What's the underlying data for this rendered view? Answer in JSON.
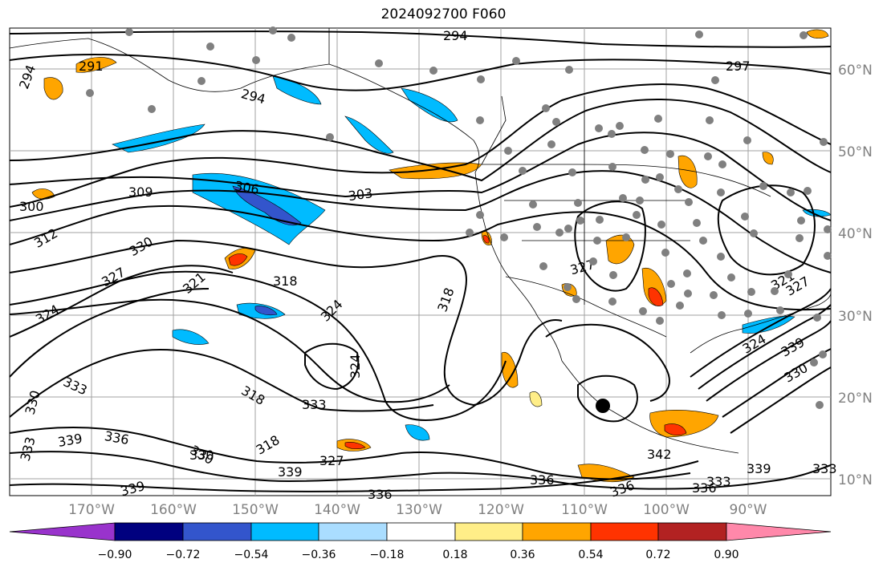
{
  "title": "2024092700 F060",
  "longitude_labels": [
    "170°W",
    "160°W",
    "150°W",
    "140°W",
    "130°W",
    "120°W",
    "110°W",
    "100°W",
    "90°W"
  ],
  "latitude_labels": [
    "60°N",
    "50°N",
    "40°N",
    "30°N",
    "20°N",
    "10°N"
  ],
  "colorbar": {
    "tick_labels": [
      "−0.90",
      "−0.72",
      "−0.54",
      "−0.36",
      "−0.18",
      "0.18",
      "0.36",
      "0.54",
      "0.72",
      "0.90"
    ],
    "colors": [
      "#9933cc",
      "#00007f",
      "#3355cc",
      "#00bbff",
      "#aaddff",
      "#ffffff",
      "#ffee88",
      "#ffa500",
      "#ff3300",
      "#b22222",
      "#ff88aa"
    ]
  },
  "contour_labels": [
    "294",
    "291",
    "294",
    "294",
    "297",
    "300",
    "309",
    "306",
    "303",
    "312",
    "330",
    "327",
    "321",
    "318",
    "324",
    "324",
    "318",
    "324",
    "333",
    "333",
    "330",
    "327",
    "321",
    "318",
    "330",
    "333",
    "339",
    "336",
    "330",
    "318",
    "327",
    "339",
    "336",
    "339",
    "339",
    "342",
    "336",
    "336",
    "336",
    "333",
    "339",
    "330",
    "324",
    "327",
    "333"
  ],
  "colors": {
    "shading_orange": "#ffa500",
    "shading_blue": "#00bbff",
    "shading_red": "#ff3300",
    "station_marker": "#808080",
    "map_frame": "#000000"
  }
}
